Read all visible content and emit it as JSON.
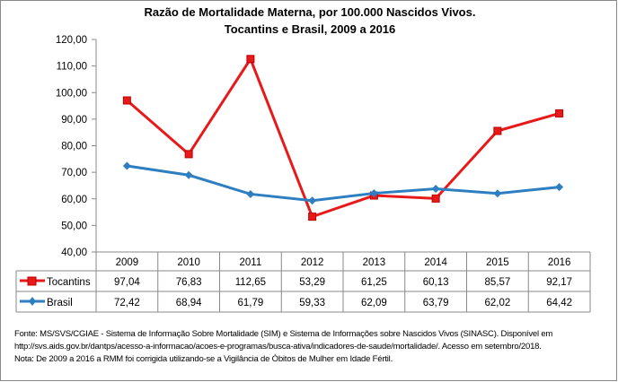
{
  "chart_data": {
    "type": "line",
    "title": "Razão de Mortalidade Materna, por 100.000 Nascidos Vivos.",
    "subtitle": "Tocantins e Brasil, 2009 a 2016",
    "categories": [
      "2009",
      "2010",
      "2011",
      "2012",
      "2013",
      "2014",
      "2015",
      "2016"
    ],
    "ylim": [
      40,
      120
    ],
    "yticks": [
      "40,00",
      "50,00",
      "60,00",
      "70,00",
      "80,00",
      "90,00",
      "100,00",
      "110,00",
      "120,00"
    ],
    "grid": false,
    "legend": "data-table",
    "series": [
      {
        "name": "Tocantins",
        "color": "#e8191a",
        "marker": "square",
        "values": [
          97.04,
          76.83,
          112.65,
          53.29,
          61.25,
          60.13,
          85.57,
          92.17
        ],
        "labels": [
          "97,04",
          "76,83",
          "112,65",
          "53,29",
          "61,25",
          "60,13",
          "85,57",
          "92,17"
        ]
      },
      {
        "name": "Brasil",
        "color": "#2e7fc1",
        "marker": "diamond",
        "values": [
          72.42,
          68.94,
          61.79,
          59.33,
          62.09,
          63.79,
          62.02,
          64.42
        ],
        "labels": [
          "72,42",
          "68,94",
          "61,79",
          "59,33",
          "62,09",
          "63,79",
          "62,02",
          "64,42"
        ]
      }
    ]
  },
  "notes": [
    "Fonte: MS/SVS/CGIAE - Sistema de Informação Sobre Mortalidade (SIM) e Sistema de Informações sobre Nascidos Vivos (SINASC). Disponível em",
    "http://svs.aids.gov.br/dantps/acesso-a-informacao/acoes-e-programas/busca-ativa/indicadores-de-saude/mortalidade/. Acesso em setembro/2018.",
    "Nota: De 2009 a 2016 a RMM foi corrigida utilizando-se a Vigilância de Óbitos de Mulher em Idade Fértil."
  ]
}
